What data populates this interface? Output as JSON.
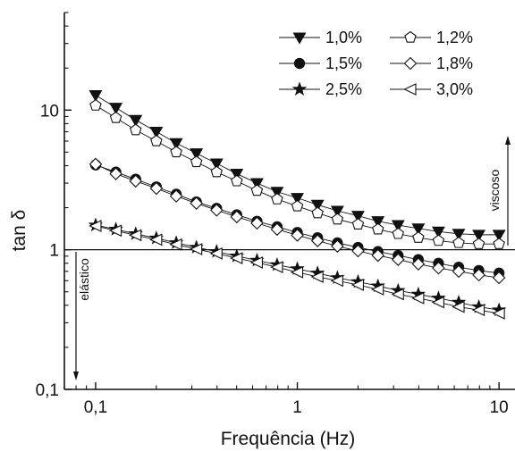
{
  "chart_data": {
    "type": "line",
    "title": "",
    "xlabel": "Frequência (Hz)",
    "ylabel": "tan δ",
    "xscale": "log",
    "yscale": "log",
    "xlim": [
      0.07,
      12
    ],
    "ylim": [
      0.1,
      50
    ],
    "x_ticks": [
      {
        "value": 0.1,
        "label": "0,1"
      },
      {
        "value": 1,
        "label": "1"
      },
      {
        "value": 10,
        "label": "10"
      }
    ],
    "y_ticks": [
      {
        "value": 0.1,
        "label": "0,1"
      },
      {
        "value": 1,
        "label": "1"
      },
      {
        "value": 10,
        "label": "10"
      }
    ],
    "reference_line": {
      "y": 1
    },
    "grid": false,
    "legend_position": "top-right",
    "x": [
      0.1,
      0.126,
      0.158,
      0.2,
      0.251,
      0.316,
      0.398,
      0.501,
      0.631,
      0.794,
      1.0,
      1.26,
      1.58,
      2.0,
      2.51,
      3.16,
      3.98,
      5.01,
      6.31,
      7.94,
      10.0
    ],
    "series": [
      {
        "name": "1,0%",
        "marker": "triangle-down",
        "filled": true,
        "values": [
          12.8,
          10.4,
          8.5,
          7.0,
          5.8,
          4.9,
          4.15,
          3.5,
          3.0,
          2.6,
          2.35,
          2.1,
          1.9,
          1.75,
          1.6,
          1.5,
          1.42,
          1.35,
          1.3,
          1.28,
          1.28
        ]
      },
      {
        "name": "1,2%",
        "marker": "pentagon",
        "filled": false,
        "values": [
          10.8,
          8.8,
          7.2,
          6.0,
          5.0,
          4.25,
          3.6,
          3.1,
          2.65,
          2.3,
          2.05,
          1.83,
          1.65,
          1.52,
          1.4,
          1.3,
          1.22,
          1.16,
          1.12,
          1.1,
          1.1
        ]
      },
      {
        "name": "1,5%",
        "marker": "circle",
        "filled": true,
        "values": [
          4.05,
          3.6,
          3.2,
          2.82,
          2.5,
          2.2,
          1.98,
          1.78,
          1.6,
          1.46,
          1.33,
          1.22,
          1.12,
          1.04,
          0.97,
          0.91,
          0.85,
          0.8,
          0.75,
          0.71,
          0.68
        ]
      },
      {
        "name": "1,8%",
        "marker": "diamond",
        "filled": false,
        "values": [
          4.1,
          3.5,
          3.1,
          2.75,
          2.42,
          2.15,
          1.92,
          1.72,
          1.55,
          1.4,
          1.27,
          1.16,
          1.06,
          0.98,
          0.91,
          0.85,
          0.79,
          0.74,
          0.7,
          0.66,
          0.63
        ]
      },
      {
        "name": "2,5%",
        "marker": "star",
        "filled": true,
        "values": [
          1.5,
          1.4,
          1.3,
          1.21,
          1.12,
          1.04,
          0.97,
          0.9,
          0.84,
          0.78,
          0.73,
          0.68,
          0.63,
          0.59,
          0.55,
          0.51,
          0.48,
          0.45,
          0.42,
          0.39,
          0.37
        ]
      },
      {
        "name": "3,0%",
        "marker": "triangle-left",
        "filled": false,
        "values": [
          1.48,
          1.37,
          1.27,
          1.18,
          1.09,
          1.01,
          0.94,
          0.87,
          0.81,
          0.75,
          0.69,
          0.64,
          0.6,
          0.56,
          0.52,
          0.48,
          0.45,
          0.42,
          0.39,
          0.37,
          0.35
        ]
      }
    ],
    "annotations": [
      {
        "text": "viscoso",
        "direction": "up"
      },
      {
        "text": "elástico",
        "direction": "down"
      }
    ]
  }
}
